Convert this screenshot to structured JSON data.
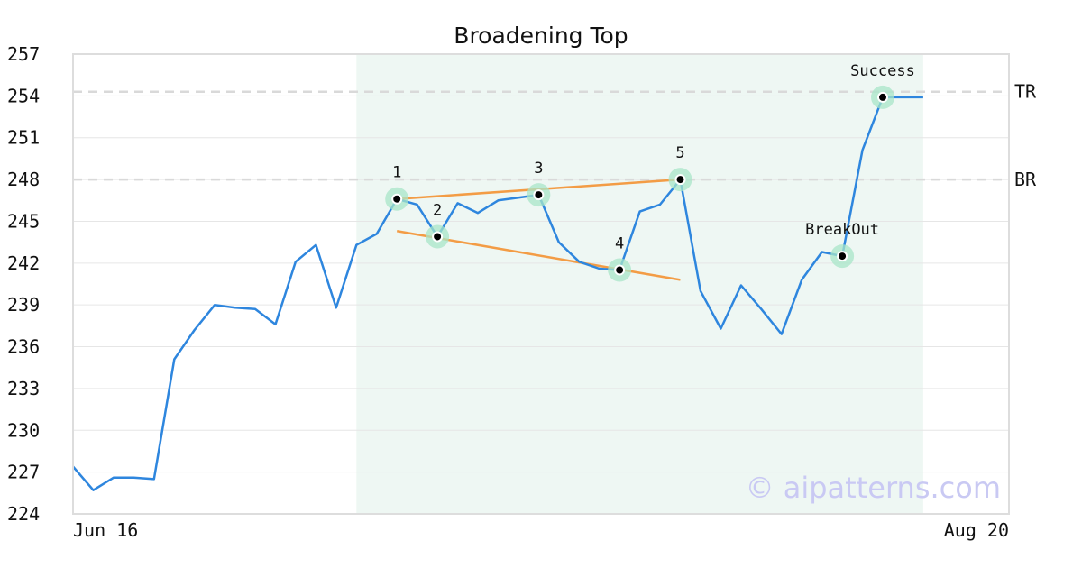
{
  "chart_data": {
    "type": "line",
    "title": "Broadening Top",
    "xlabel": "",
    "ylabel": "",
    "ylim": [
      224,
      257
    ],
    "yticks": [
      224,
      227,
      230,
      233,
      236,
      239,
      242,
      245,
      248,
      251,
      254,
      257
    ],
    "xtick_labels": [
      "Jun 16",
      "Aug 20"
    ],
    "grid": true,
    "series": [
      {
        "color": "#2e86de",
        "values": [
          227.4,
          225.7,
          226.6,
          226.6,
          226.5,
          235.1,
          237.2,
          239.0,
          238.8,
          238.7,
          237.6,
          242.1,
          243.3,
          238.8,
          243.3,
          244.1,
          246.6,
          246.2,
          243.9,
          246.3,
          245.6,
          246.5,
          246.7,
          246.9,
          243.5,
          242.1,
          241.6,
          241.5,
          245.7,
          246.2,
          248.0,
          240.0,
          237.3,
          240.4,
          238.7,
          236.9,
          240.8,
          242.8,
          242.5,
          250.1,
          253.9,
          253.9,
          253.9
        ]
      }
    ],
    "levels": [
      {
        "label": "TR",
        "value": 254.3
      },
      {
        "label": "BR",
        "value": 248.0
      }
    ],
    "pattern_region": {
      "start_index": 14,
      "end_index": 42,
      "color": "#eef7f3"
    },
    "trendlines": [
      {
        "from": {
          "index": 16,
          "value": 246.6
        },
        "to": {
          "index": 30,
          "value": 248.0
        },
        "color": "#f39c45"
      },
      {
        "from": {
          "index": 16,
          "value": 244.3
        },
        "to": {
          "index": 30,
          "value": 240.8
        },
        "color": "#f39c45"
      }
    ],
    "points": [
      {
        "label": "1",
        "index": 16,
        "value": 246.6,
        "label_pos": "above"
      },
      {
        "label": "2",
        "index": 18,
        "value": 243.9,
        "label_pos": "above"
      },
      {
        "label": "3",
        "index": 23,
        "value": 246.9,
        "label_pos": "above"
      },
      {
        "label": "4",
        "index": 27,
        "value": 241.5,
        "label_pos": "above"
      },
      {
        "label": "5",
        "index": 30,
        "value": 248.0,
        "label_pos": "above"
      },
      {
        "label": "BreakOut",
        "index": 38,
        "value": 242.5,
        "label_pos": "above"
      },
      {
        "label": "Success",
        "index": 40,
        "value": 253.9,
        "label_pos": "above"
      }
    ],
    "watermark": "© aipatterns.com"
  }
}
